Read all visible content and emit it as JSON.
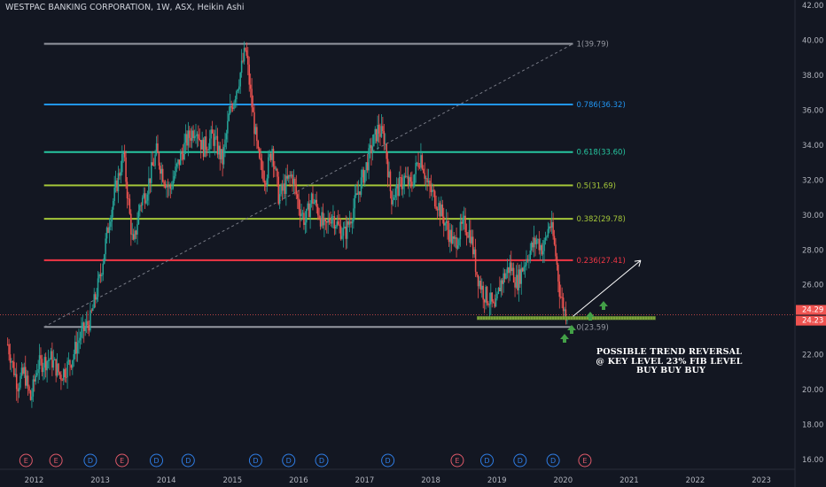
{
  "header": {
    "title": "WESTPAC BANKING CORPORATION, 1W, ASX, Heikin Ashi"
  },
  "annotation": {
    "line1": "POSSIBLE TREND REVERSAL",
    "line2": "@ KEY LEVEL 23% FIB LEVEL",
    "line3": "BUY BUY BUY"
  },
  "colors": {
    "background": "#131722",
    "up": "#26a69a",
    "down": "#ef5350",
    "grid_text": "#b2b5be",
    "support_zone": "#7aa23a",
    "arrow": "#43a047"
  },
  "chart_data": {
    "type": "candlestick",
    "y_axis": {
      "ylim": [
        15.6,
        42.3
      ],
      "ticks": [
        16,
        18,
        20,
        22,
        24,
        26,
        28,
        30,
        32,
        34,
        36,
        38,
        40,
        42
      ],
      "tick_labels": [
        "16.00",
        "18.00",
        "20.00",
        "22.00",
        "24.00",
        "26.00",
        "28.00",
        "30.00",
        "32.00",
        "34.00",
        "36.00",
        "38.00",
        "40.00",
        "42.00"
      ]
    },
    "x_axis": {
      "tick_labels": [
        "2012",
        "2013",
        "2014",
        "2015",
        "2016",
        "2017",
        "2018",
        "2019",
        "2020",
        "2021",
        "2022",
        "2023"
      ]
    },
    "price_tags": [
      {
        "label": "24.29",
        "value": 24.29,
        "color": "#ef5350"
      },
      {
        "label": "24.23",
        "value": 24.23,
        "color": "#ef5350"
      }
    ],
    "fib_levels": [
      {
        "label": "1(39.79)",
        "value": 39.79,
        "color": "#9598a1"
      },
      {
        "label": "0.786(36.32)",
        "value": 36.32,
        "color": "#2196f3"
      },
      {
        "label": "0.618(33.60)",
        "value": 33.6,
        "color": "#26c6a0"
      },
      {
        "label": "0.5(31.69)",
        "value": 31.69,
        "color": "#a4c639"
      },
      {
        "label": "0.382(29.78)",
        "value": 29.78,
        "color": "#a4c639"
      },
      {
        "label": "0.236(27.41)",
        "value": 27.41,
        "color": "#f23645"
      },
      {
        "label": "0(23.59)",
        "value": 23.59,
        "color": "#9598a1"
      }
    ],
    "price_path": [
      [
        2011.6,
        22.6
      ],
      [
        2011.75,
        20.3
      ],
      [
        2011.85,
        21.0
      ],
      [
        2011.95,
        19.4
      ],
      [
        2012.05,
        21.4
      ],
      [
        2012.25,
        21.8
      ],
      [
        2012.4,
        20.8
      ],
      [
        2012.55,
        21.6
      ],
      [
        2012.7,
        23.1
      ],
      [
        2012.85,
        24.0
      ],
      [
        2013.0,
        26.5
      ],
      [
        2013.15,
        30.0
      ],
      [
        2013.35,
        33.5
      ],
      [
        2013.45,
        29.8
      ],
      [
        2013.5,
        28.1
      ],
      [
        2013.6,
        30.6
      ],
      [
        2013.7,
        31.4
      ],
      [
        2013.85,
        33.6
      ],
      [
        2013.95,
        32.3
      ],
      [
        2014.05,
        31.4
      ],
      [
        2014.15,
        32.6
      ],
      [
        2014.3,
        34.2
      ],
      [
        2014.45,
        35.1
      ],
      [
        2014.55,
        33.8
      ],
      [
        2014.7,
        34.5
      ],
      [
        2014.85,
        33.1
      ],
      [
        2014.95,
        35.7
      ],
      [
        2015.1,
        37.8
      ],
      [
        2015.2,
        39.5
      ],
      [
        2015.3,
        36.0
      ],
      [
        2015.4,
        33.0
      ],
      [
        2015.5,
        32.1
      ],
      [
        2015.6,
        33.9
      ],
      [
        2015.7,
        31.0
      ],
      [
        2015.8,
        31.7
      ],
      [
        2015.9,
        32.3
      ],
      [
        2016.0,
        30.6
      ],
      [
        2016.1,
        29.6
      ],
      [
        2016.2,
        31.0
      ],
      [
        2016.3,
        30.2
      ],
      [
        2016.4,
        29.1
      ],
      [
        2016.5,
        30.1
      ],
      [
        2016.6,
        29.3
      ],
      [
        2016.7,
        28.9
      ],
      [
        2016.8,
        30.0
      ],
      [
        2016.9,
        31.3
      ],
      [
        2017.0,
        32.5
      ],
      [
        2017.1,
        33.8
      ],
      [
        2017.2,
        34.9
      ],
      [
        2017.3,
        34.4
      ],
      [
        2017.4,
        31.0
      ],
      [
        2017.5,
        31.5
      ],
      [
        2017.6,
        32.1
      ],
      [
        2017.7,
        31.6
      ],
      [
        2017.8,
        33.0
      ],
      [
        2017.85,
        33.4
      ],
      [
        2017.95,
        31.7
      ],
      [
        2018.1,
        30.7
      ],
      [
        2018.25,
        29.2
      ],
      [
        2018.35,
        28.3
      ],
      [
        2018.5,
        29.5
      ],
      [
        2018.6,
        28.9
      ],
      [
        2018.7,
        26.6
      ],
      [
        2018.8,
        25.5
      ],
      [
        2018.9,
        25.1
      ],
      [
        2018.97,
        24.4
      ],
      [
        2019.05,
        26.1
      ],
      [
        2019.2,
        27.1
      ],
      [
        2019.3,
        26.1
      ],
      [
        2019.45,
        27.6
      ],
      [
        2019.6,
        28.6
      ],
      [
        2019.7,
        28.0
      ],
      [
        2019.8,
        29.6
      ],
      [
        2019.85,
        28.7
      ],
      [
        2019.9,
        27.4
      ],
      [
        2019.95,
        25.6
      ],
      [
        2020.02,
        24.5
      ],
      [
        2020.08,
        24.3
      ]
    ],
    "events": [
      {
        "label": "E",
        "x": 2011.85,
        "kind": "earnings"
      },
      {
        "label": "E",
        "x": 2012.33,
        "kind": "earnings"
      },
      {
        "label": "D",
        "x": 2012.85,
        "kind": "dividend"
      },
      {
        "label": "E",
        "x": 2013.33,
        "kind": "earnings"
      },
      {
        "label": "D",
        "x": 2013.85,
        "kind": "dividend"
      },
      {
        "label": "D",
        "x": 2014.33,
        "kind": "dividend"
      },
      {
        "label": "D",
        "x": 2015.35,
        "kind": "dividend"
      },
      {
        "label": "D",
        "x": 2015.85,
        "kind": "dividend"
      },
      {
        "label": "D",
        "x": 2016.35,
        "kind": "dividend"
      },
      {
        "label": "D",
        "x": 2017.35,
        "kind": "dividend"
      },
      {
        "label": "E",
        "x": 2018.4,
        "kind": "earnings"
      },
      {
        "label": "D",
        "x": 2018.85,
        "kind": "dividend"
      },
      {
        "label": "D",
        "x": 2019.35,
        "kind": "dividend"
      },
      {
        "label": "D",
        "x": 2019.85,
        "kind": "dividend"
      },
      {
        "label": "E",
        "x": 2020.33,
        "kind": "earnings"
      }
    ],
    "fib_anchor": {
      "start": [
        2012.15,
        23.59
      ],
      "end": [
        2020.15,
        39.79
      ]
    },
    "support_zone": {
      "x": [
        2018.7,
        2021.4
      ],
      "y": 24.1
    },
    "trend_arrow": {
      "start": [
        2020.15,
        24.2
      ],
      "end": [
        2021.0,
        27.4
      ]
    }
  }
}
